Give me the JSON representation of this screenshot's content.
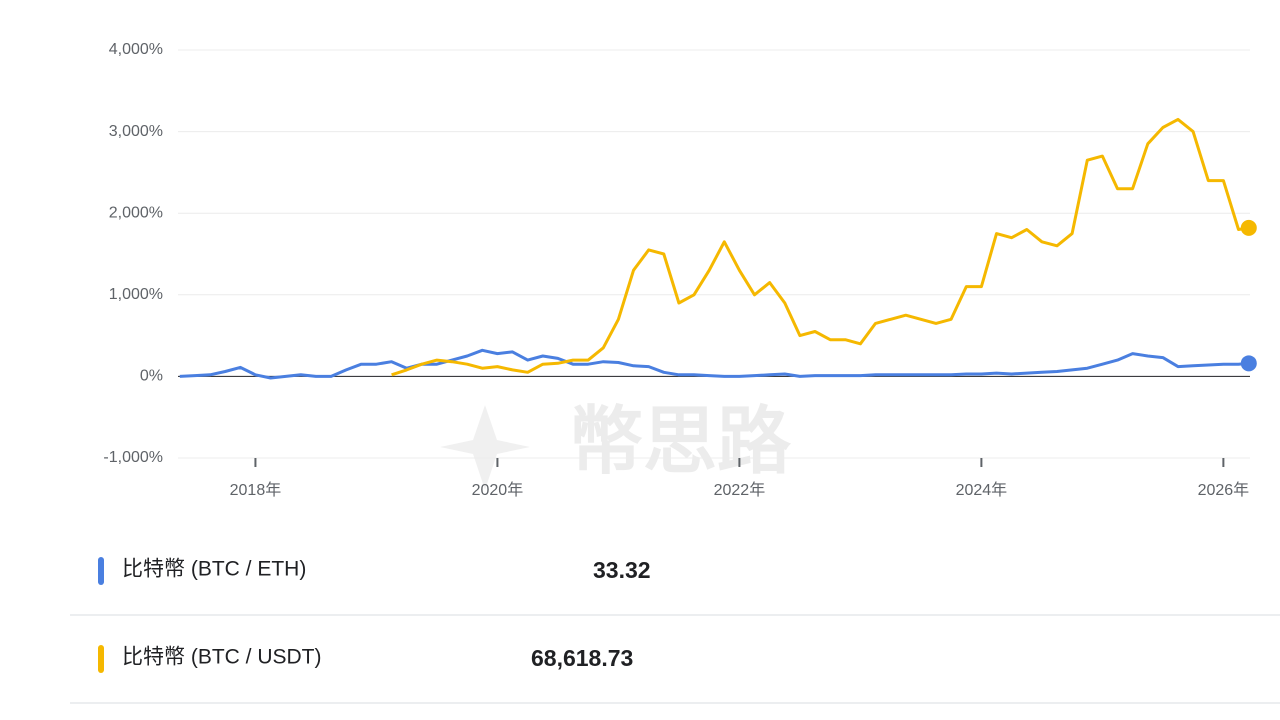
{
  "chart_data": {
    "type": "line",
    "watermark": "幣思路",
    "x": [
      2017.375,
      2017.5,
      2017.625,
      2017.75,
      2017.875,
      2018,
      2018.125,
      2018.25,
      2018.375,
      2018.5,
      2018.625,
      2018.75,
      2018.875,
      2019,
      2019.125,
      2019.25,
      2019.375,
      2019.5,
      2019.625,
      2019.75,
      2019.875,
      2020,
      2020.125,
      2020.25,
      2020.375,
      2020.5,
      2020.625,
      2020.75,
      2020.875,
      2021,
      2021.125,
      2021.25,
      2021.375,
      2021.5,
      2021.625,
      2021.75,
      2021.875,
      2022,
      2022.125,
      2022.25,
      2022.375,
      2022.5,
      2022.625,
      2022.75,
      2022.875,
      2023,
      2023.125,
      2023.25,
      2023.375,
      2023.5,
      2023.625,
      2023.75,
      2023.875,
      2024,
      2024.125,
      2024.25,
      2024.375,
      2024.5,
      2024.625,
      2024.75,
      2024.875,
      2025,
      2025.125,
      2025.25,
      2025.375,
      2025.5,
      2025.625,
      2025.75,
      2025.875,
      2026,
      2026.125,
      2026.21
    ],
    "series": [
      {
        "name": "比特幣 (BTC / ETH)",
        "color": "#4a7fe0",
        "quote": 33.32,
        "values": [
          0,
          10,
          20,
          60,
          110,
          20,
          -20,
          0,
          20,
          0,
          0,
          80,
          150,
          150,
          180,
          100,
          150,
          150,
          200,
          250,
          320,
          280,
          300,
          200,
          250,
          220,
          150,
          150,
          180,
          170,
          130,
          120,
          50,
          20,
          20,
          10,
          0,
          0,
          10,
          20,
          30,
          0,
          10,
          10,
          10,
          10,
          20,
          20,
          20,
          20,
          20,
          20,
          30,
          30,
          40,
          30,
          40,
          50,
          60,
          80,
          100,
          150,
          200,
          280,
          250,
          230,
          120,
          130,
          140,
          150,
          150,
          160
        ]
      },
      {
        "name": "比特幣 (BTC / USDT)",
        "color": "#f5b800",
        "quote": {
          "value": 68618.73,
          "label": "68,618.73"
        },
        "values": [
          null,
          null,
          null,
          null,
          null,
          null,
          null,
          null,
          null,
          null,
          null,
          null,
          null,
          null,
          20,
          80,
          150,
          200,
          180,
          150,
          100,
          120,
          80,
          50,
          150,
          160,
          200,
          200,
          350,
          700,
          1300,
          1550,
          1500,
          900,
          1000,
          1300,
          1650,
          1300,
          1000,
          1150,
          900,
          500,
          550,
          450,
          450,
          400,
          650,
          700,
          750,
          700,
          650,
          700,
          1100,
          1100,
          1750,
          1700,
          1800,
          1650,
          1600,
          1750,
          2650,
          2700,
          2300,
          2300,
          2850,
          3050,
          3150,
          3000,
          2400,
          2400,
          1800,
          1820
        ]
      }
    ],
    "xlim": [
      2017.36,
      2026.22
    ],
    "xticks": [
      {
        "value": 2018,
        "label": "2018年"
      },
      {
        "value": 2020,
        "label": "2020年"
      },
      {
        "value": 2022,
        "label": "2022年"
      },
      {
        "value": 2024,
        "label": "2024年"
      },
      {
        "value": 2026,
        "label": "2026年"
      }
    ],
    "ylim": [
      -1000,
      4000
    ],
    "yticks": [
      {
        "value": -1000,
        "label": "-1,000%"
      },
      {
        "value": 0,
        "label": "0%"
      },
      {
        "value": 1000,
        "label": "1,000%"
      },
      {
        "value": 2000,
        "label": "2,000%"
      },
      {
        "value": 3000,
        "label": "3,000%"
      },
      {
        "value": 4000,
        "label": "4,000%"
      }
    ],
    "grid": true
  }
}
